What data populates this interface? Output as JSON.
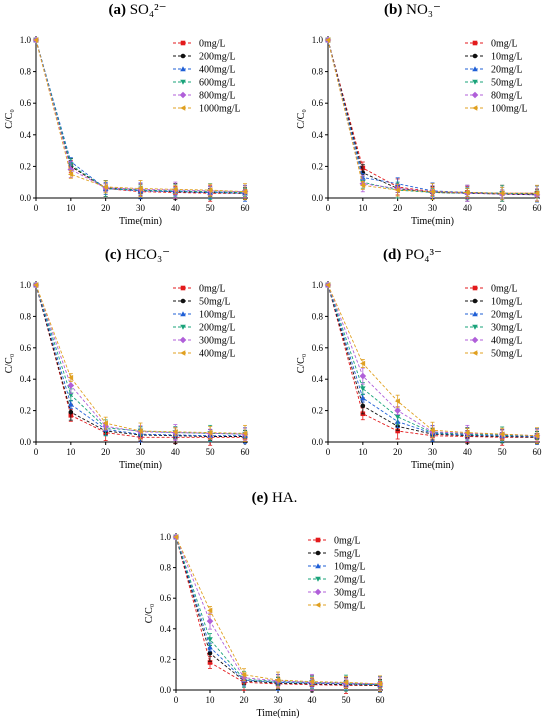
{
  "chart_data": [
    {
      "type": "line",
      "panel_label": "(a)",
      "title": "SO₄²⁻",
      "xlabel": "Time(min)",
      "ylabel": "C/C₀",
      "xlim": [
        0,
        60
      ],
      "ylim": [
        0,
        1.0
      ],
      "xticks": [
        0,
        10,
        20,
        30,
        40,
        50,
        60
      ],
      "yticks": [
        0.0,
        0.2,
        0.4,
        0.6,
        0.8,
        1.0
      ],
      "tick_labels_y": [
        "0.0",
        "0.2",
        "0.4",
        "0.6",
        "0.8",
        "1.0"
      ],
      "legend_position": "top-right",
      "x": [
        0,
        10,
        20,
        30,
        40,
        50,
        60
      ],
      "series": [
        {
          "name": "0mg/L",
          "values": [
            1.0,
            0.2,
            0.06,
            0.04,
            0.035,
            0.03,
            0.03
          ],
          "color": "#e31a1c",
          "marker": "square"
        },
        {
          "name": "200mg/L",
          "values": [
            1.0,
            0.2,
            0.065,
            0.05,
            0.04,
            0.035,
            0.03
          ],
          "color": "#111111",
          "marker": "circle"
        },
        {
          "name": "400mg/L",
          "values": [
            1.0,
            0.23,
            0.06,
            0.045,
            0.04,
            0.035,
            0.03
          ],
          "color": "#1f5fd6",
          "marker": "triangle-up"
        },
        {
          "name": "600mg/L",
          "values": [
            1.0,
            0.21,
            0.06,
            0.05,
            0.045,
            0.04,
            0.035
          ],
          "color": "#1aa37a",
          "marker": "triangle-down"
        },
        {
          "name": "800mg/L",
          "values": [
            1.0,
            0.18,
            0.065,
            0.055,
            0.05,
            0.045,
            0.04
          ],
          "color": "#b05fd9",
          "marker": "diamond"
        },
        {
          "name": "1000mg/L",
          "values": [
            1.0,
            0.15,
            0.07,
            0.06,
            0.055,
            0.05,
            0.04
          ],
          "color": "#e0a020",
          "marker": "triangle-left"
        }
      ]
    },
    {
      "type": "line",
      "panel_label": "(b)",
      "title": "NO₃⁻",
      "xlabel": "Time(min)",
      "ylabel": "C/C₀",
      "xlim": [
        0,
        60
      ],
      "ylim": [
        0,
        1.0
      ],
      "xticks": [
        0,
        10,
        20,
        30,
        40,
        50,
        60
      ],
      "yticks": [
        0.0,
        0.2,
        0.4,
        0.6,
        0.8,
        1.0
      ],
      "tick_labels_y": [
        "0.0",
        "0.2",
        "0.4",
        "0.6",
        "0.8",
        "1.0"
      ],
      "legend_position": "top-right",
      "x": [
        0,
        10,
        20,
        30,
        40,
        50,
        60
      ],
      "series": [
        {
          "name": "0mg/L",
          "values": [
            1.0,
            0.19,
            0.07,
            0.04,
            0.035,
            0.03,
            0.03
          ],
          "color": "#e31a1c",
          "marker": "square"
        },
        {
          "name": "10mg/L",
          "values": [
            1.0,
            0.16,
            0.06,
            0.035,
            0.03,
            0.025,
            0.02
          ],
          "color": "#111111",
          "marker": "circle"
        },
        {
          "name": "20mg/L",
          "values": [
            1.0,
            0.13,
            0.09,
            0.045,
            0.035,
            0.03,
            0.025
          ],
          "color": "#1f5fd6",
          "marker": "triangle-up"
        },
        {
          "name": "50mg/L",
          "values": [
            1.0,
            0.1,
            0.05,
            0.035,
            0.03,
            0.03,
            0.025
          ],
          "color": "#1aa37a",
          "marker": "triangle-down"
        },
        {
          "name": "80mg/L",
          "values": [
            1.0,
            0.09,
            0.06,
            0.04,
            0.03,
            0.025,
            0.02
          ],
          "color": "#b05fd9",
          "marker": "diamond"
        },
        {
          "name": "100mg/L",
          "values": [
            1.0,
            0.08,
            0.05,
            0.04,
            0.035,
            0.03,
            0.03
          ],
          "color": "#e0a020",
          "marker": "triangle-left"
        }
      ]
    },
    {
      "type": "line",
      "panel_label": "(c)",
      "title": "HCO₃⁻",
      "xlabel": "Time(min)",
      "ylabel": "C/C₀",
      "xlim": [
        0,
        60
      ],
      "ylim": [
        0,
        1.0
      ],
      "xticks": [
        0,
        10,
        20,
        30,
        40,
        50,
        60
      ],
      "yticks": [
        0.0,
        0.2,
        0.4,
        0.6,
        0.8,
        1.0
      ],
      "tick_labels_y": [
        "0.0",
        "0.2",
        "0.4",
        "0.6",
        "0.8",
        "1.0"
      ],
      "legend_position": "top-right",
      "x": [
        0,
        10,
        20,
        30,
        40,
        50,
        60
      ],
      "series": [
        {
          "name": "0mg/L",
          "values": [
            1.0,
            0.17,
            0.06,
            0.03,
            0.03,
            0.03,
            0.03
          ],
          "color": "#e31a1c",
          "marker": "square"
        },
        {
          "name": "50mg/L",
          "values": [
            1.0,
            0.19,
            0.07,
            0.045,
            0.04,
            0.035,
            0.035
          ],
          "color": "#111111",
          "marker": "circle"
        },
        {
          "name": "100mg/L",
          "values": [
            1.0,
            0.24,
            0.08,
            0.05,
            0.045,
            0.04,
            0.04
          ],
          "color": "#1f5fd6",
          "marker": "triangle-up"
        },
        {
          "name": "200mg/L",
          "values": [
            1.0,
            0.3,
            0.09,
            0.07,
            0.06,
            0.055,
            0.05
          ],
          "color": "#1aa37a",
          "marker": "triangle-down"
        },
        {
          "name": "300mg/L",
          "values": [
            1.0,
            0.36,
            0.1,
            0.065,
            0.06,
            0.055,
            0.05
          ],
          "color": "#b05fd9",
          "marker": "diamond"
        },
        {
          "name": "400mg/L",
          "values": [
            1.0,
            0.41,
            0.12,
            0.07,
            0.065,
            0.06,
            0.055
          ],
          "color": "#e0a020",
          "marker": "triangle-left"
        }
      ]
    },
    {
      "type": "line",
      "panel_label": "(d)",
      "title": "PO₄³⁻",
      "xlabel": "Time(min)",
      "ylabel": "C/C₀",
      "xlim": [
        0,
        60
      ],
      "ylim": [
        0,
        1.0
      ],
      "xticks": [
        0,
        10,
        20,
        30,
        40,
        50,
        60
      ],
      "yticks": [
        0.0,
        0.2,
        0.4,
        0.6,
        0.8,
        1.0
      ],
      "tick_labels_y": [
        "0.0",
        "0.2",
        "0.4",
        "0.6",
        "0.8",
        "1.0"
      ],
      "legend_position": "top-right",
      "x": [
        0,
        10,
        20,
        30,
        40,
        50,
        60
      ],
      "series": [
        {
          "name": "0mg/L",
          "values": [
            1.0,
            0.18,
            0.07,
            0.04,
            0.035,
            0.03,
            0.03
          ],
          "color": "#e31a1c",
          "marker": "square"
        },
        {
          "name": "10mg/L",
          "values": [
            1.0,
            0.23,
            0.1,
            0.05,
            0.04,
            0.035,
            0.03
          ],
          "color": "#111111",
          "marker": "circle"
        },
        {
          "name": "20mg/L",
          "values": [
            1.0,
            0.28,
            0.13,
            0.055,
            0.045,
            0.04,
            0.035
          ],
          "color": "#1f5fd6",
          "marker": "triangle-up"
        },
        {
          "name": "30mg/L",
          "values": [
            1.0,
            0.34,
            0.16,
            0.06,
            0.05,
            0.045,
            0.04
          ],
          "color": "#1aa37a",
          "marker": "triangle-down"
        },
        {
          "name": "40mg/L",
          "values": [
            1.0,
            0.42,
            0.2,
            0.065,
            0.055,
            0.05,
            0.04
          ],
          "color": "#b05fd9",
          "marker": "diamond"
        },
        {
          "name": "50mg/L",
          "values": [
            1.0,
            0.5,
            0.26,
            0.075,
            0.06,
            0.05,
            0.04
          ],
          "color": "#e0a020",
          "marker": "triangle-left"
        }
      ]
    },
    {
      "type": "line",
      "panel_label": "(e)",
      "title": "HA.",
      "xlabel": "Time(min)",
      "ylabel": "C/C₀",
      "xlim": [
        0,
        60
      ],
      "ylim": [
        0,
        1.0
      ],
      "xticks": [
        0,
        10,
        20,
        30,
        40,
        50,
        60
      ],
      "yticks": [
        0.0,
        0.2,
        0.4,
        0.6,
        0.8,
        1.0
      ],
      "tick_labels_y": [
        "0.0",
        "0.2",
        "0.4",
        "0.6",
        "0.8",
        "1.0"
      ],
      "legend_position": "top-right",
      "x": [
        0,
        10,
        20,
        30,
        40,
        50,
        60
      ],
      "series": [
        {
          "name": "0mg/L",
          "values": [
            1.0,
            0.18,
            0.05,
            0.04,
            0.035,
            0.03,
            0.03
          ],
          "color": "#e31a1c",
          "marker": "square"
        },
        {
          "name": "5mg/L",
          "values": [
            1.0,
            0.24,
            0.06,
            0.045,
            0.04,
            0.035,
            0.03
          ],
          "color": "#111111",
          "marker": "circle"
        },
        {
          "name": "10mg/L",
          "values": [
            1.0,
            0.28,
            0.065,
            0.05,
            0.045,
            0.04,
            0.035
          ],
          "color": "#1f5fd6",
          "marker": "triangle-up"
        },
        {
          "name": "20mg/L",
          "values": [
            1.0,
            0.33,
            0.07,
            0.055,
            0.05,
            0.045,
            0.035
          ],
          "color": "#1aa37a",
          "marker": "triangle-down"
        },
        {
          "name": "30mg/L",
          "values": [
            1.0,
            0.45,
            0.08,
            0.06,
            0.05,
            0.045,
            0.04
          ],
          "color": "#b05fd9",
          "marker": "diamond"
        },
        {
          "name": "50mg/L",
          "values": [
            1.0,
            0.52,
            0.1,
            0.065,
            0.055,
            0.05,
            0.04
          ],
          "color": "#e0a020",
          "marker": "triangle-left"
        }
      ]
    }
  ]
}
